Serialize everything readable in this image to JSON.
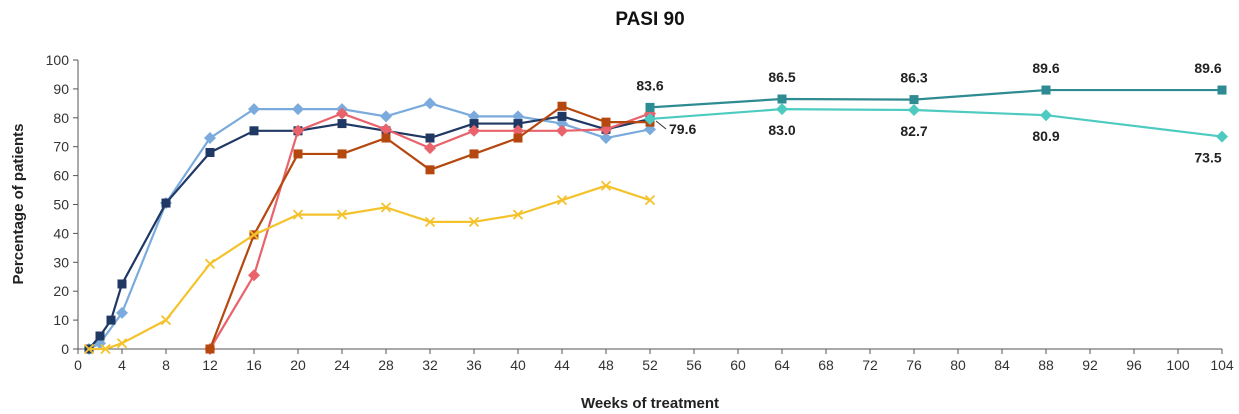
{
  "chart_data": {
    "type": "line",
    "title": "PASI 90",
    "xlabel": "Weeks of treatment",
    "ylabel": "Percentage of patients",
    "xlim": [
      0,
      104
    ],
    "ylim": [
      0,
      100
    ],
    "xticks": [
      0,
      4,
      8,
      12,
      16,
      20,
      24,
      28,
      32,
      36,
      40,
      44,
      48,
      52,
      56,
      60,
      64,
      68,
      72,
      76,
      80,
      84,
      88,
      92,
      96,
      100,
      104
    ],
    "yticks": [
      0,
      10,
      20,
      30,
      40,
      50,
      60,
      70,
      80,
      90,
      100
    ],
    "grid": false,
    "legend": "none",
    "series": [
      {
        "color": "#7aabdc",
        "marker": "diamond",
        "points": [
          [
            1,
            0
          ],
          [
            2,
            2
          ],
          [
            4,
            12.5
          ],
          [
            8,
            50.5
          ],
          [
            12,
            73
          ],
          [
            16,
            83
          ],
          [
            20,
            83
          ],
          [
            24,
            83
          ],
          [
            28,
            80.5
          ],
          [
            32,
            85
          ],
          [
            36,
            80.5
          ],
          [
            40,
            80.5
          ],
          [
            44,
            78
          ],
          [
            48,
            73
          ],
          [
            52,
            76
          ]
        ]
      },
      {
        "color": "#1f3864",
        "marker": "square",
        "points": [
          [
            1,
            0
          ],
          [
            2,
            4.5
          ],
          [
            3,
            10
          ],
          [
            4,
            22.5
          ],
          [
            8,
            50.5
          ],
          [
            12,
            68
          ],
          [
            16,
            75.5
          ],
          [
            20,
            75.5
          ],
          [
            24,
            78
          ],
          [
            28,
            75.5
          ],
          [
            32,
            73
          ],
          [
            36,
            78
          ],
          [
            40,
            78
          ],
          [
            44,
            80.5
          ],
          [
            48,
            76
          ],
          [
            52,
            79.6
          ]
        ]
      },
      {
        "color": "#e8636b",
        "marker": "diamond",
        "points": [
          [
            12,
            0
          ],
          [
            16,
            25.5
          ],
          [
            20,
            75.5
          ],
          [
            24,
            81.5
          ],
          [
            28,
            76
          ],
          [
            32,
            69.5
          ],
          [
            36,
            75.5
          ],
          [
            40,
            75.5
          ],
          [
            44,
            75.5
          ],
          [
            48,
            76
          ],
          [
            52,
            81.5
          ]
        ]
      },
      {
        "color": "#b5480f",
        "marker": "square",
        "points": [
          [
            12,
            0
          ],
          [
            16,
            39.5
          ],
          [
            20,
            67.5
          ],
          [
            24,
            67.5
          ],
          [
            28,
            73
          ],
          [
            32,
            62
          ],
          [
            36,
            67.5
          ],
          [
            40,
            73
          ],
          [
            44,
            84
          ],
          [
            48,
            78.5
          ],
          [
            52,
            78.5
          ]
        ]
      },
      {
        "color": "#f4c22b",
        "marker": "x",
        "points": [
          [
            1,
            0
          ],
          [
            2.5,
            0
          ],
          [
            4,
            2
          ],
          [
            8,
            10
          ],
          [
            12,
            29.5
          ],
          [
            16,
            39.5
          ],
          [
            20,
            46.5
          ],
          [
            24,
            46.5
          ],
          [
            28,
            49
          ],
          [
            32,
            44
          ],
          [
            36,
            44
          ],
          [
            40,
            46.5
          ],
          [
            44,
            51.5
          ],
          [
            48,
            56.5
          ],
          [
            52,
            51.5
          ]
        ]
      },
      {
        "color": "#2e8b91",
        "marker": "square",
        "points": [
          [
            52,
            83.6
          ],
          [
            64,
            86.5
          ],
          [
            76,
            86.3
          ],
          [
            88,
            89.6
          ],
          [
            104,
            89.6
          ]
        ]
      },
      {
        "color": "#4ecbc0",
        "marker": "diamond",
        "points": [
          [
            52,
            79.6
          ],
          [
            64,
            83.0
          ],
          [
            76,
            82.7
          ],
          [
            88,
            80.9
          ],
          [
            104,
            73.5
          ]
        ]
      }
    ],
    "data_labels": [
      {
        "text": "83.6",
        "x": 52,
        "y": 83.6,
        "pos": "above"
      },
      {
        "text": "86.5",
        "x": 64,
        "y": 86.5,
        "pos": "above"
      },
      {
        "text": "86.3",
        "x": 76,
        "y": 86.3,
        "pos": "above"
      },
      {
        "text": "89.6",
        "x": 88,
        "y": 89.6,
        "pos": "above"
      },
      {
        "text": "89.6",
        "x": 104,
        "y": 89.6,
        "pos": "above-left"
      },
      {
        "text": "79.6",
        "x": 52,
        "y": 79.6,
        "pos": "right-leader"
      },
      {
        "text": "83.0",
        "x": 64,
        "y": 83.0,
        "pos": "below"
      },
      {
        "text": "82.7",
        "x": 76,
        "y": 82.7,
        "pos": "below"
      },
      {
        "text": "80.9",
        "x": 88,
        "y": 80.9,
        "pos": "below"
      },
      {
        "text": "73.5",
        "x": 104,
        "y": 73.5,
        "pos": "below-left"
      }
    ]
  }
}
